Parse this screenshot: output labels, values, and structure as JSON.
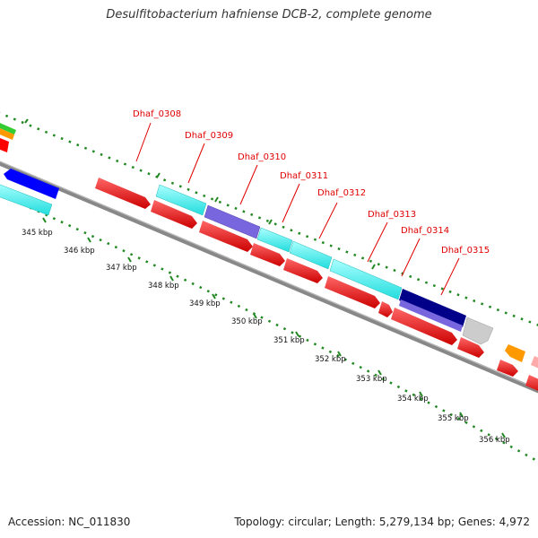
{
  "title": "Desulfitobacterium hafniense DCB-2, complete genome",
  "accession": "Accession: NC_011830",
  "summary": "Topology: circular; Length: 5,279,134 bp; Genes: 4,972",
  "colors": {
    "cds_forward": "#ff0000",
    "cds_reverse": "#ff0000",
    "cyan_track": "#33ffff",
    "purple": "#7766dd",
    "navy": "#000088",
    "blue": "#0000ff",
    "grey_gene": "#cccccc",
    "orange": "#ff9900",
    "green": "#33cc33",
    "pink": "#ffaaaa",
    "backbone": "#888888",
    "ticks": "#228822",
    "labels": "#e00000"
  },
  "kbp_labels": [
    "345 kbp",
    "346 kbp",
    "347 kbp",
    "348 kbp",
    "349 kbp",
    "350 kbp",
    "351 kbp",
    "352 kbp",
    "353 kbp",
    "354 kbp",
    "355 kbp",
    "356 kbp"
  ],
  "gene_labels": [
    {
      "text": "Dhaf_0308",
      "color": "#e00000"
    },
    {
      "text": "Dhaf_0309",
      "color": "#e00000"
    },
    {
      "text": "Dhaf_0310",
      "color": "#e00000"
    },
    {
      "text": "Dhaf_0311",
      "color": "#e00000"
    },
    {
      "text": "Dhaf_0312",
      "color": "#e00000"
    },
    {
      "text": "Dhaf_0313",
      "color": "#e00000"
    },
    {
      "text": "Dhaf_0314",
      "color": "#e00000"
    },
    {
      "text": "Dhaf_0315",
      "color": "#e00000"
    }
  ],
  "genes": [
    {
      "track": "cyan",
      "color": "#33ffff"
    },
    {
      "track": "cyan",
      "color": "#33ffff"
    },
    {
      "track": "cyan",
      "color": "#7766dd"
    },
    {
      "track": "cyan",
      "color": "#33ffff"
    },
    {
      "track": "cyan",
      "color": "#33ffff"
    },
    {
      "track": "cyan",
      "color": "#33ffff"
    },
    {
      "track": "cyan",
      "color": "#000088"
    },
    {
      "track": "cyan",
      "color": "#cccccc"
    },
    {
      "track": "cds",
      "color": "#ff0000"
    },
    {
      "track": "cds",
      "color": "#ff0000"
    },
    {
      "track": "cds",
      "color": "#ff0000"
    },
    {
      "track": "cds",
      "color": "#ff0000"
    },
    {
      "track": "cds",
      "color": "#ff0000"
    },
    {
      "track": "cds",
      "color": "#ff0000"
    },
    {
      "track": "cds",
      "color": "#ff0000"
    },
    {
      "track": "cds",
      "color": "#ff0000"
    }
  ]
}
